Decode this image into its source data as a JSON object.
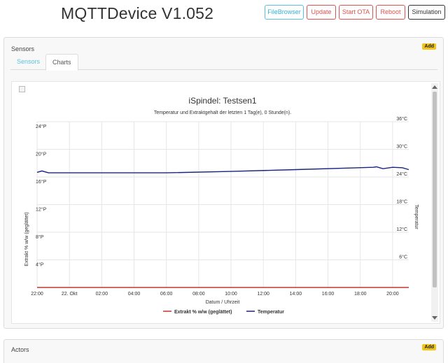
{
  "app": {
    "title": "MQTTDevice V1.052"
  },
  "toolbar": [
    {
      "label": "FileBrowser",
      "style": "info"
    },
    {
      "label": "Update",
      "style": "danger"
    },
    {
      "label": "Start OTA",
      "style": "danger"
    },
    {
      "label": "Reboot",
      "style": "danger"
    },
    {
      "label": "Simulation",
      "style": "dark"
    }
  ],
  "sensors_panel": {
    "title": "Sensors",
    "add_label": "Add",
    "tabs": [
      {
        "label": "Sensors",
        "active": false
      },
      {
        "label": "Charts",
        "active": true
      }
    ]
  },
  "actors_panel": {
    "title": "Actors",
    "add_label": "Add"
  },
  "chart_data": {
    "type": "line",
    "title": "iSpindel: Testsen1",
    "subtitle": "Temperatur und Extraktgehalt der letzten 1 Tag(e), 0 Stunde(n).",
    "xlabel": "Datum / Uhrzeit",
    "ylabel": "Extrakt % w/w (geglättet)",
    "y2label": "Temperatur",
    "x_ticks": [
      "22:00",
      "22. Okt",
      "02:00",
      "04:00",
      "06:00",
      "08:00",
      "10:00",
      "12:00",
      "14:00",
      "16:00",
      "18:00",
      "20:00"
    ],
    "x_range_hours": [
      0,
      23
    ],
    "y_ticks": [
      "24°P",
      "20°P",
      "16°P",
      "12°P",
      "8°P",
      "4°P"
    ],
    "y_values": [
      24,
      20,
      16,
      12,
      8,
      4
    ],
    "ylim": [
      0,
      24
    ],
    "y2_ticks": [
      "36°C",
      "30°C",
      "24°C",
      "18°C",
      "12°C",
      "6°C"
    ],
    "y2_values": [
      36,
      30,
      24,
      18,
      12,
      6
    ],
    "y2lim": [
      0,
      36
    ],
    "grid": true,
    "legend": "bottom-center",
    "series": [
      {
        "name": "Extrakt % w/w (geglättet)",
        "color": "#c0392b",
        "axis": "left",
        "x": [
          0,
          23
        ],
        "y": [
          0,
          0
        ]
      },
      {
        "name": "Temperatur",
        "color": "#1a237e",
        "axis": "right",
        "x": [
          0,
          0.3,
          0.7,
          8,
          12,
          16,
          20.8,
          21,
          21.2,
          21.4,
          22,
          22.6,
          23
        ],
        "y": [
          25.0,
          25.3,
          24.9,
          24.9,
          25.2,
          25.6,
          26.1,
          26.2,
          26.0,
          25.8,
          26.1,
          26.0,
          25.6
        ]
      }
    ]
  }
}
